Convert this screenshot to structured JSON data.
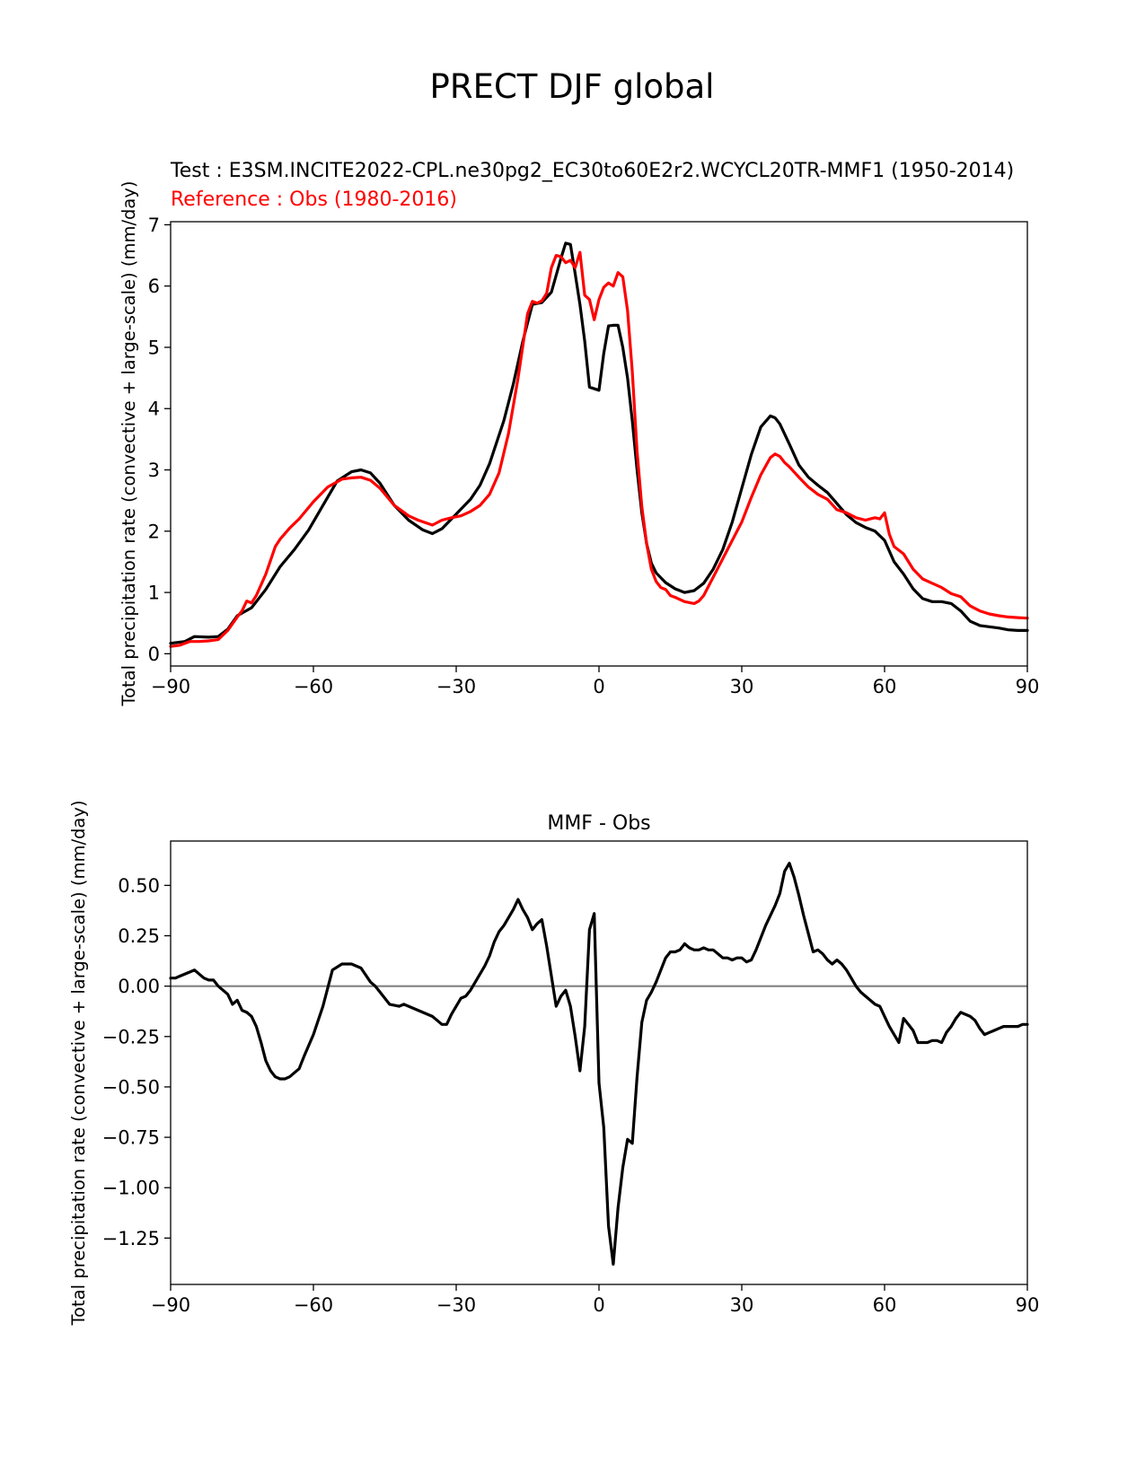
{
  "figure_title": "PRECT DJF global",
  "chart_data": [
    {
      "type": "line",
      "title": "",
      "test_label": "Test : E3SM.INCITE2022-CPL.ne30pg2_EC30to60E2r2.WCYCL20TR-MMF1 (1950-2014)",
      "reference_label": "Reference : Obs (1980-2016)",
      "xlabel": "",
      "ylabel": "Total precipitation rate (convective + large-scale) (mm/day)",
      "xlim": [
        -90,
        90
      ],
      "ylim": [
        -0.2,
        7.05
      ],
      "xticks": [
        -90,
        -60,
        -30,
        0,
        30,
        60,
        90
      ],
      "xtick_labels": [
        "−90",
        "−60",
        "−30",
        "0",
        "30",
        "60",
        "90"
      ],
      "yticks": [
        0,
        1,
        2,
        3,
        4,
        5,
        6,
        7
      ],
      "ytick_labels": [
        "0",
        "1",
        "2",
        "3",
        "4",
        "5",
        "6",
        "7"
      ],
      "series": [
        {
          "name": "Test (MMF)",
          "color": "#000000",
          "x": [
            -90,
            -87,
            -85,
            -82,
            -80,
            -78,
            -76,
            -73,
            -70,
            -67,
            -64,
            -61,
            -58,
            -55,
            -52,
            -50,
            -48,
            -46,
            -43,
            -40,
            -37,
            -35,
            -33,
            -30,
            -27,
            -25,
            -23,
            -20,
            -18,
            -16,
            -14,
            -12,
            -10,
            -8,
            -7,
            -6,
            -5,
            -4,
            -3,
            -2,
            0,
            1,
            2,
            3,
            4,
            5,
            6,
            7,
            8,
            9,
            10,
            11,
            12,
            13,
            14,
            16,
            18,
            20,
            22,
            24,
            26,
            28,
            30,
            32,
            34,
            36,
            37,
            38,
            40,
            42,
            44,
            46,
            48,
            50,
            52,
            54,
            56,
            58,
            60,
            62,
            64,
            66,
            68,
            70,
            72,
            74,
            76,
            78,
            80,
            82,
            84,
            86,
            88,
            90
          ],
          "values": [
            0.17,
            0.2,
            0.28,
            0.27,
            0.28,
            0.4,
            0.62,
            0.75,
            1.05,
            1.42,
            1.7,
            2.02,
            2.42,
            2.82,
            2.97,
            3.0,
            2.95,
            2.78,
            2.42,
            2.18,
            2.02,
            1.96,
            2.04,
            2.28,
            2.52,
            2.75,
            3.1,
            3.8,
            4.4,
            5.1,
            5.7,
            5.73,
            5.9,
            6.45,
            6.7,
            6.68,
            6.2,
            5.7,
            5.1,
            4.35,
            4.3,
            4.9,
            5.35,
            5.36,
            5.36,
            5.0,
            4.5,
            3.8,
            3.0,
            2.3,
            1.8,
            1.48,
            1.32,
            1.24,
            1.16,
            1.06,
            1.0,
            1.03,
            1.15,
            1.38,
            1.7,
            2.15,
            2.7,
            3.25,
            3.7,
            3.88,
            3.85,
            3.75,
            3.42,
            3.08,
            2.88,
            2.75,
            2.63,
            2.45,
            2.27,
            2.14,
            2.06,
            2.0,
            1.85,
            1.5,
            1.3,
            1.06,
            0.9,
            0.85,
            0.85,
            0.82,
            0.7,
            0.53,
            0.46,
            0.44,
            0.42,
            0.39,
            0.38,
            0.38
          ]
        },
        {
          "name": "Reference (Obs)",
          "color": "#ff0000",
          "x": [
            -90,
            -88,
            -86,
            -84,
            -82,
            -80,
            -78,
            -76,
            -75,
            -74,
            -73,
            -72,
            -70,
            -68,
            -67,
            -65,
            -63,
            -60,
            -57,
            -54,
            -52,
            -50,
            -48,
            -46,
            -43,
            -40,
            -38,
            -35,
            -33,
            -31,
            -29,
            -27,
            -25,
            -23,
            -21,
            -19,
            -17,
            -15,
            -14,
            -13,
            -12,
            -11,
            -10,
            -9,
            -8,
            -7,
            -6,
            -5,
            -4,
            -3,
            -2,
            -1,
            0,
            1,
            2,
            3,
            4,
            5,
            6,
            7,
            8,
            9,
            10,
            11,
            12,
            13,
            14,
            15,
            16,
            18,
            20,
            21,
            22,
            24,
            26,
            28,
            30,
            32,
            34,
            36,
            37,
            38,
            39,
            40,
            42,
            44,
            46,
            48,
            50,
            52,
            54,
            56,
            57,
            58,
            59,
            60,
            61,
            62,
            64,
            66,
            68,
            70,
            72,
            74,
            76,
            78,
            80,
            82,
            84,
            86,
            88,
            90
          ],
          "values": [
            0.12,
            0.14,
            0.2,
            0.2,
            0.21,
            0.23,
            0.38,
            0.6,
            0.7,
            0.86,
            0.83,
            0.95,
            1.3,
            1.75,
            1.87,
            2.05,
            2.2,
            2.48,
            2.72,
            2.85,
            2.87,
            2.88,
            2.83,
            2.7,
            2.42,
            2.25,
            2.18,
            2.1,
            2.18,
            2.22,
            2.25,
            2.32,
            2.42,
            2.6,
            2.95,
            3.6,
            4.5,
            5.55,
            5.75,
            5.72,
            5.76,
            5.88,
            6.3,
            6.5,
            6.48,
            6.38,
            6.42,
            6.3,
            6.55,
            5.85,
            5.78,
            5.45,
            5.78,
            5.98,
            6.05,
            6.0,
            6.22,
            6.15,
            5.6,
            4.6,
            3.3,
            2.4,
            1.8,
            1.38,
            1.18,
            1.08,
            1.05,
            0.95,
            0.92,
            0.85,
            0.82,
            0.86,
            0.95,
            1.25,
            1.55,
            1.85,
            2.15,
            2.55,
            2.92,
            3.2,
            3.26,
            3.22,
            3.12,
            3.05,
            2.88,
            2.72,
            2.6,
            2.52,
            2.35,
            2.3,
            2.22,
            2.18,
            2.2,
            2.22,
            2.2,
            2.3,
            1.95,
            1.75,
            1.63,
            1.38,
            1.22,
            1.15,
            1.08,
            0.98,
            0.93,
            0.78,
            0.7,
            0.65,
            0.62,
            0.6,
            0.59,
            0.58
          ]
        }
      ]
    },
    {
      "type": "line",
      "title": "MMF - Obs",
      "xlabel": "",
      "ylabel": "Total precipitation rate (convective + large-scale) (mm/day)",
      "xlim": [
        -90,
        90
      ],
      "ylim": [
        -1.48,
        0.72
      ],
      "xticks": [
        -90,
        -60,
        -30,
        0,
        30,
        60,
        90
      ],
      "xtick_labels": [
        "−90",
        "−60",
        "−30",
        "0",
        "30",
        "60",
        "90"
      ],
      "yticks": [
        0.5,
        0.25,
        0.0,
        -0.25,
        -0.5,
        -0.75,
        -1.0,
        -1.25
      ],
      "ytick_labels": [
        "0.50",
        "0.25",
        "0.00",
        "−0.25",
        "−0.50",
        "−0.75",
        "−1.00",
        "−1.25"
      ],
      "zero_line_color": "#808080",
      "series": [
        {
          "name": "MMF - Obs",
          "color": "#000000",
          "x": [
            -90,
            -89,
            -88,
            -86,
            -85,
            -84,
            -83,
            -82,
            -81,
            -80,
            -78,
            -77,
            -76,
            -75,
            -74,
            -73,
            -72,
            -71,
            -70,
            -69,
            -68,
            -67,
            -66,
            -65,
            -64,
            -63,
            -62,
            -60,
            -58,
            -56,
            -54,
            -52,
            -50,
            -48,
            -47,
            -46,
            -44,
            -42,
            -41,
            -40,
            -38,
            -36,
            -35,
            -34,
            -33,
            -32,
            -31,
            -30,
            -29,
            -28,
            -27,
            -26,
            -25,
            -24,
            -23,
            -22,
            -21,
            -20,
            -19,
            -18,
            -17,
            -16,
            -15,
            -14,
            -13,
            -12,
            -11,
            -10,
            -9,
            -8,
            -7,
            -6,
            -5,
            -4,
            -3,
            -2,
            -1,
            0,
            1,
            2,
            3,
            4,
            5,
            6,
            7,
            8,
            9,
            10,
            11,
            12,
            13,
            14,
            15,
            16,
            17,
            18,
            19,
            20,
            21,
            22,
            23,
            24,
            25,
            26,
            27,
            28,
            29,
            30,
            31,
            32,
            33,
            34,
            35,
            36,
            37,
            38,
            39,
            40,
            41,
            42,
            43,
            44,
            45,
            46,
            47,
            48,
            49,
            50,
            51,
            52,
            53,
            54,
            55,
            56,
            57,
            58,
            59,
            60,
            61,
            62,
            63,
            64,
            65,
            66,
            67,
            68,
            69,
            70,
            71,
            72,
            73,
            74,
            75,
            76,
            77,
            78,
            79,
            80,
            81,
            82,
            83,
            84,
            85,
            86,
            87,
            88,
            89,
            90
          ],
          "values": [
            0.04,
            0.04,
            0.05,
            0.07,
            0.08,
            0.06,
            0.04,
            0.03,
            0.03,
            0.0,
            -0.04,
            -0.09,
            -0.07,
            -0.12,
            -0.13,
            -0.15,
            -0.2,
            -0.28,
            -0.37,
            -0.42,
            -0.45,
            -0.46,
            -0.46,
            -0.45,
            -0.43,
            -0.41,
            -0.35,
            -0.24,
            -0.1,
            0.08,
            0.11,
            0.11,
            0.09,
            0.02,
            0.0,
            -0.03,
            -0.09,
            -0.1,
            -0.09,
            -0.1,
            -0.12,
            -0.14,
            -0.15,
            -0.17,
            -0.19,
            -0.19,
            -0.14,
            -0.1,
            -0.06,
            -0.05,
            -0.02,
            0.02,
            0.06,
            0.1,
            0.15,
            0.22,
            0.27,
            0.3,
            0.34,
            0.38,
            0.43,
            0.38,
            0.34,
            0.28,
            0.31,
            0.33,
            0.2,
            0.05,
            -0.1,
            -0.05,
            -0.02,
            -0.1,
            -0.25,
            -0.42,
            -0.2,
            0.28,
            0.36,
            -0.48,
            -0.7,
            -1.19,
            -1.38,
            -1.1,
            -0.9,
            -0.76,
            -0.78,
            -0.45,
            -0.18,
            -0.07,
            -0.03,
            0.02,
            0.08,
            0.14,
            0.17,
            0.17,
            0.18,
            0.21,
            0.19,
            0.18,
            0.18,
            0.19,
            0.18,
            0.18,
            0.16,
            0.14,
            0.14,
            0.13,
            0.14,
            0.14,
            0.12,
            0.13,
            0.18,
            0.24,
            0.3,
            0.35,
            0.4,
            0.46,
            0.57,
            0.61,
            0.54,
            0.45,
            0.35,
            0.26,
            0.17,
            0.18,
            0.16,
            0.13,
            0.11,
            0.13,
            0.11,
            0.08,
            0.04,
            0.0,
            -0.03,
            -0.05,
            -0.07,
            -0.09,
            -0.1,
            -0.15,
            -0.2,
            -0.24,
            -0.28,
            -0.16,
            -0.19,
            -0.22,
            -0.28,
            -0.28,
            -0.28,
            -0.27,
            -0.27,
            -0.28,
            -0.23,
            -0.2,
            -0.16,
            -0.13,
            -0.14,
            -0.15,
            -0.17,
            -0.21,
            -0.24,
            -0.23,
            -0.22,
            -0.21,
            -0.2,
            -0.2,
            -0.2,
            -0.2,
            -0.19,
            -0.19
          ]
        }
      ]
    }
  ]
}
